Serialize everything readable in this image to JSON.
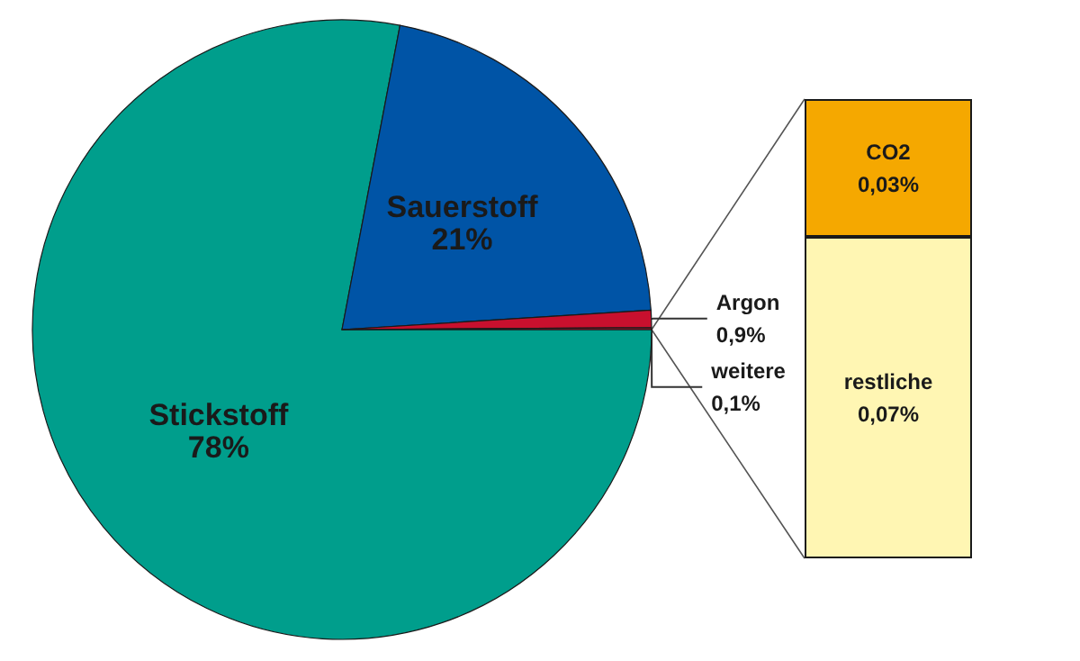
{
  "chart_data": [
    {
      "type": "pie",
      "categories": [
        "Stickstoff",
        "Sauerstoff",
        "Argon",
        "weitere"
      ],
      "values": [
        78,
        21,
        0.9,
        0.1
      ],
      "value_labels": [
        "78%",
        "21%",
        "0,9%",
        "0,1%"
      ],
      "colors": [
        "#009e8c",
        "#0054a6",
        "#c8102e",
        "#c8102e"
      ],
      "legend": false
    },
    {
      "type": "bar",
      "stacked": true,
      "categories": [
        null
      ],
      "legend": false,
      "series": [
        {
          "name": "restliche",
          "color": "#fff6b3",
          "values": [
            0.07
          ],
          "value_labels": [
            "0,07%"
          ]
        },
        {
          "name": "CO2",
          "color": "#f5a800",
          "values": [
            0.03
          ],
          "value_labels": [
            "0,03%"
          ]
        }
      ]
    }
  ]
}
